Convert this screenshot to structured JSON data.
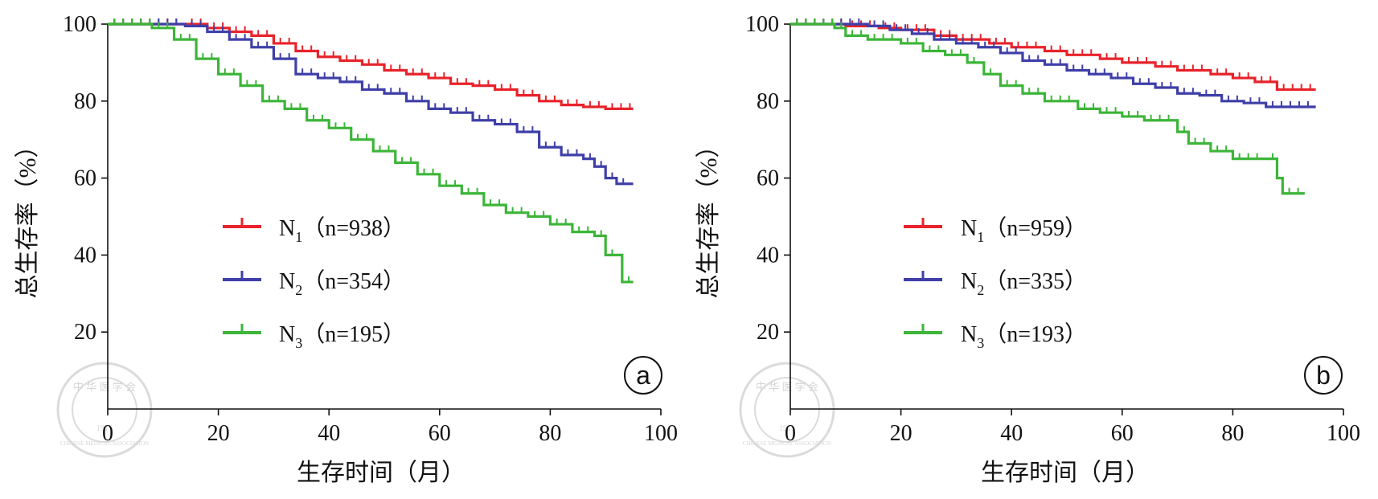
{
  "figure": {
    "watermark": {
      "text_top": "中 华 医 学 会",
      "text_year": "1915",
      "text_bottom": "CHINESE MEDICAL ASSOCIATION"
    }
  },
  "chart_data": [
    {
      "type": "line",
      "step": true,
      "panel_label": "a",
      "xlabel": "生存时间（月）",
      "ylabel": "总生存率（%）",
      "xlim": [
        0,
        100
      ],
      "ylim": [
        0,
        100
      ],
      "xticks": [
        0,
        20,
        40,
        60,
        80,
        100
      ],
      "yticks": [
        20,
        40,
        60,
        80,
        100
      ],
      "legend_position": "center-left",
      "series": [
        {
          "name": "N1",
          "legend": {
            "main": "N",
            "sub": "1",
            "n_text": "（n=938）"
          },
          "color": "#e8232b",
          "x": [
            0,
            14,
            18,
            22,
            26,
            30,
            34,
            38,
            42,
            46,
            50,
            54,
            58,
            62,
            66,
            70,
            74,
            78,
            82,
            86,
            90,
            95
          ],
          "y": [
            100,
            100,
            99,
            98,
            97,
            95,
            93,
            91.5,
            90.5,
            89.5,
            88,
            87,
            86,
            84.5,
            84,
            83,
            81.5,
            80,
            79,
            78.5,
            78,
            78
          ]
        },
        {
          "name": "N2",
          "legend": {
            "main": "N",
            "sub": "2",
            "n_text": "（n=354）"
          },
          "color": "#3f3fa8",
          "x": [
            0,
            14,
            18,
            22,
            26,
            30,
            34,
            38,
            42,
            46,
            50,
            54,
            58,
            62,
            66,
            70,
            74,
            78,
            82,
            86,
            88,
            90,
            92,
            95
          ],
          "y": [
            100,
            99.5,
            98,
            96,
            94,
            91,
            87,
            86,
            85,
            83,
            82,
            80,
            78,
            77,
            75,
            74,
            72,
            68,
            66,
            65,
            63,
            60,
            58.5,
            58.5
          ]
        },
        {
          "name": "N3",
          "legend": {
            "main": "N",
            "sub": "3",
            "n_text": "（n=195）"
          },
          "color": "#3cb539",
          "x": [
            0,
            8,
            12,
            16,
            20,
            24,
            28,
            32,
            36,
            40,
            44,
            48,
            52,
            56,
            60,
            64,
            68,
            72,
            76,
            80,
            84,
            88,
            90,
            93,
            95
          ],
          "y": [
            100,
            99,
            96,
            91,
            87,
            84,
            80,
            78,
            75,
            73,
            70,
            67,
            64,
            61,
            58,
            56,
            53,
            51,
            50,
            48,
            46,
            45,
            40,
            33,
            33
          ]
        }
      ]
    },
    {
      "type": "line",
      "step": true,
      "panel_label": "b",
      "xlabel": "生存时间（月）",
      "ylabel": "总生存率（%）",
      "xlim": [
        0,
        100
      ],
      "ylim": [
        0,
        100
      ],
      "xticks": [
        0,
        20,
        40,
        60,
        80,
        100
      ],
      "yticks": [
        20,
        40,
        60,
        80,
        100
      ],
      "legend_position": "center-left",
      "series": [
        {
          "name": "N1",
          "legend": {
            "main": "N",
            "sub": "1",
            "n_text": "（n=959）"
          },
          "color": "#e8232b",
          "x": [
            0,
            10,
            16,
            20,
            26,
            30,
            36,
            40,
            46,
            50,
            56,
            60,
            66,
            70,
            76,
            80,
            84,
            88,
            95
          ],
          "y": [
            100,
            99.5,
            99,
            98.5,
            97,
            96,
            95,
            94,
            93,
            92,
            91,
            90,
            89,
            88,
            87,
            86,
            85,
            83,
            83
          ]
        },
        {
          "name": "N2",
          "legend": {
            "main": "N",
            "sub": "2",
            "n_text": "（n=335）"
          },
          "color": "#3f3fa8",
          "x": [
            0,
            14,
            18,
            22,
            26,
            30,
            34,
            38,
            42,
            46,
            50,
            54,
            58,
            62,
            66,
            70,
            74,
            78,
            82,
            86,
            95
          ],
          "y": [
            100,
            99.5,
            98.5,
            97.5,
            96,
            95,
            94,
            92.5,
            90.5,
            89.5,
            88,
            87,
            86,
            84.5,
            83.5,
            82,
            81.5,
            80,
            79.5,
            78.5,
            78.5
          ]
        },
        {
          "name": "N3",
          "legend": {
            "main": "N",
            "sub": "3",
            "n_text": "（n=193）"
          },
          "color": "#3cb539",
          "x": [
            0,
            8,
            10,
            14,
            20,
            24,
            28,
            32,
            35,
            38,
            42,
            46,
            52,
            56,
            60,
            64,
            70,
            72,
            76,
            80,
            86,
            88,
            89,
            93
          ],
          "y": [
            100,
            99,
            97,
            96,
            95,
            93,
            92,
            90,
            87,
            84,
            82,
            80,
            78,
            77,
            76,
            75,
            72,
            69,
            67,
            65,
            65,
            60,
            56,
            56
          ]
        }
      ]
    }
  ]
}
